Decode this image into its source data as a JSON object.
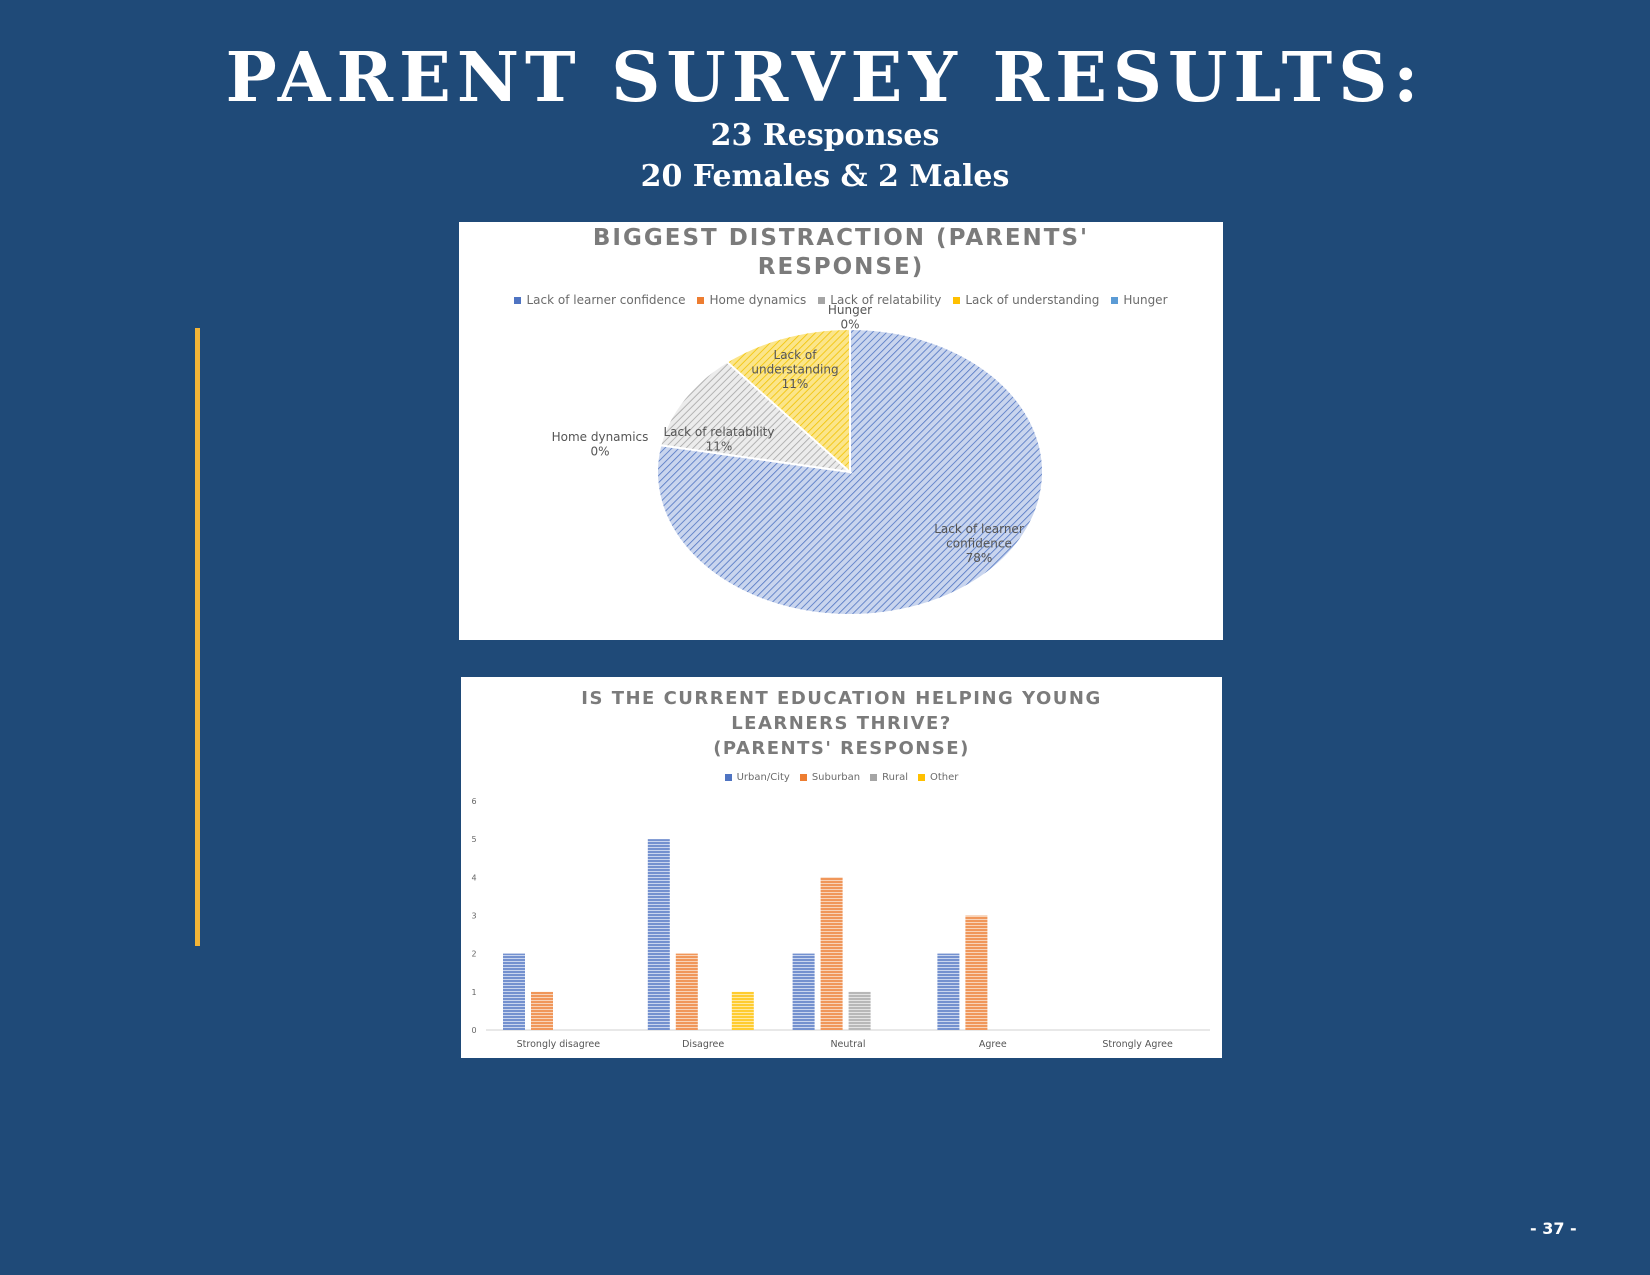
{
  "header": {
    "title": "PARENT SURVEY RESULTS:",
    "responses": "23 Responses",
    "gender": "20 Females & 2 Males"
  },
  "page_number": "- 37 -",
  "colors": {
    "background": "#1f4a78",
    "accent": "#f2b437",
    "blue": "#4f74c2",
    "orange": "#ed7d31",
    "gray": "#a5a5a5",
    "yellow": "#ffc000",
    "light_blue": "#5b9bd5"
  },
  "chart_data": [
    {
      "type": "pie",
      "title": "BIGGEST DISTRACTION (PARENTS'\nRESPONSE)",
      "legend_position": "top",
      "categories": [
        "Lack of learner confidence",
        "Home dynamics",
        "Lack of relatability",
        "Lack of understanding",
        "Hunger"
      ],
      "values": [
        78,
        0,
        11,
        11,
        0
      ],
      "unit": "%",
      "data_labels": [
        [
          "Lack of learner",
          "confidence",
          "78%"
        ],
        [
          "Home dynamics",
          "0%"
        ],
        [
          "Lack of relatability",
          "11%"
        ],
        [
          "Lack of",
          "understanding",
          "11%"
        ],
        [
          "Hunger",
          "0%"
        ]
      ],
      "colors": [
        "#4f74c2",
        "#ed7d31",
        "#a5a5a5",
        "#ffc000",
        "#5b9bd5"
      ]
    },
    {
      "type": "bar",
      "title": "IS THE CURRENT EDUCATION HELPING YOUNG\nLEARNERS THRIVE?\n(PARENTS' RESPONSE)",
      "legend_position": "top",
      "categories": [
        "Strongly disagree",
        "Disagree",
        "Neutral",
        "Agree",
        "Strongly Agree"
      ],
      "series": [
        {
          "name": "Urban/City",
          "values": [
            2,
            5,
            2,
            2,
            0
          ],
          "color": "#4f74c2"
        },
        {
          "name": "Suburban",
          "values": [
            1,
            2,
            4,
            3,
            0
          ],
          "color": "#ed7d31"
        },
        {
          "name": "Rural",
          "values": [
            0,
            0,
            1,
            0,
            0
          ],
          "color": "#a5a5a5"
        },
        {
          "name": "Other",
          "values": [
            0,
            1,
            0,
            0,
            0
          ],
          "color": "#ffc000"
        }
      ],
      "ylim": [
        0,
        6
      ],
      "yticks": [
        "0",
        "1",
        "2",
        "3",
        "4",
        "5",
        "6"
      ],
      "grid": false
    }
  ]
}
